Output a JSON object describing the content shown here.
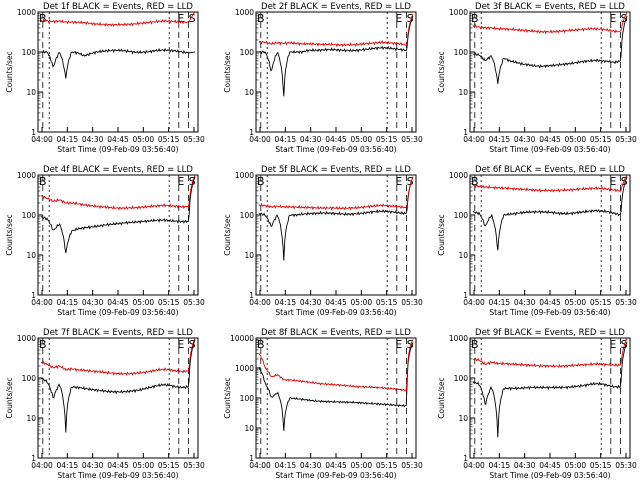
{
  "chart_data": [
    {
      "type": "line",
      "title": "Det 1f BLACK = Events, RED = LLD",
      "xlabel": "Start Time (09-Feb-09 03:56:40)",
      "ylabel": "Counts/sec",
      "y_scale": "log",
      "ylim": [
        1,
        1000
      ],
      "yticks": [
        "1",
        "10",
        "100",
        "1000"
      ],
      "xticks": [
        "04:00",
        "04:15",
        "04:30",
        "04:45",
        "05:00",
        "05:15",
        "05:30"
      ],
      "marker_labels": [
        "B",
        "E",
        "S"
      ],
      "series": [
        {
          "color": "#000000",
          "values": [
            100,
            100,
            40,
            100,
            20,
            100,
            95,
            80,
            90,
            100,
            105,
            108,
            110,
            110,
            105,
            100,
            98,
            100,
            105,
            110,
            112,
            110,
            105,
            100,
            95,
            100
          ]
        },
        {
          "color": "#e00000",
          "values": [
            600,
            600,
            580,
            590,
            560,
            560,
            550,
            540,
            520,
            500,
            490,
            480,
            480,
            485,
            490,
            500,
            520,
            540,
            560,
            580,
            600,
            590,
            570,
            560,
            550,
            1000
          ]
        }
      ]
    },
    {
      "type": "line",
      "title": "Det 2f BLACK = Events, RED = LLD",
      "xlabel": "Start Time (09-Feb-09 03:56:40)",
      "ylabel": "Counts/sec",
      "y_scale": "log",
      "ylim": [
        1,
        1000
      ],
      "yticks": [
        "1",
        "10",
        "100",
        "1000"
      ],
      "xticks": [
        "04:00",
        "04:15",
        "04:30",
        "04:45",
        "05:00",
        "05:15",
        "05:30"
      ],
      "marker_labels": [
        "B",
        "E",
        "S"
      ],
      "series": [
        {
          "color": "#000000",
          "values": [
            100,
            100,
            30,
            100,
            5,
            100,
            100,
            100,
            110,
            110,
            112,
            115,
            115,
            112,
            110,
            108,
            110,
            115,
            120,
            125,
            128,
            125,
            120,
            115,
            110,
            800
          ]
        },
        {
          "color": "#e00000",
          "values": [
            180,
            175,
            160,
            170,
            165,
            170,
            165,
            160,
            160,
            158,
            155,
            155,
            155,
            150,
            150,
            152,
            155,
            160,
            165,
            170,
            175,
            170,
            165,
            160,
            150,
            900
          ]
        }
      ]
    },
    {
      "type": "line",
      "title": "Det 3f BLACK = Events, RED = LLD",
      "xlabel": "Start Time (09-Feb-09 03:56:40)",
      "ylabel": "Counts/sec",
      "y_scale": "log",
      "ylim": [
        1,
        1000
      ],
      "yticks": [
        "1",
        "10",
        "100",
        "1000"
      ],
      "xticks": [
        "04:00",
        "04:15",
        "04:30",
        "04:45",
        "05:00",
        "05:15",
        "05:30"
      ],
      "marker_labels": [
        "B",
        "E",
        "S"
      ],
      "series": [
        {
          "color": "#000000",
          "values": [
            90,
            85,
            60,
            80,
            15,
            70,
            60,
            55,
            50,
            48,
            45,
            44,
            45,
            46,
            48,
            50,
            52,
            55,
            58,
            60,
            62,
            60,
            58,
            55,
            60,
            800
          ]
        },
        {
          "color": "#e00000",
          "values": [
            450,
            420,
            400,
            400,
            380,
            380,
            370,
            360,
            350,
            340,
            330,
            320,
            320,
            320,
            330,
            340,
            350,
            360,
            370,
            380,
            380,
            370,
            350,
            330,
            320,
            1000
          ]
        }
      ]
    },
    {
      "type": "line",
      "title": "Det 4f BLACK = Events, RED = LLD",
      "xlabel": "Start Time (09-Feb-09 03:56:40)",
      "ylabel": "Counts/sec",
      "y_scale": "log",
      "ylim": [
        1,
        1000
      ],
      "yticks": [
        "1",
        "10",
        "100",
        "1000"
      ],
      "xticks": [
        "04:00",
        "04:15",
        "04:30",
        "04:45",
        "05:00",
        "05:15",
        "05:30"
      ],
      "marker_labels": [
        "B",
        "E",
        "S"
      ],
      "series": [
        {
          "color": "#000000",
          "values": [
            90,
            80,
            40,
            60,
            10,
            40,
            45,
            48,
            50,
            52,
            55,
            58,
            60,
            62,
            65,
            66,
            68,
            70,
            72,
            74,
            75,
            72,
            70,
            68,
            70,
            900
          ]
        },
        {
          "color": "#e00000",
          "values": [
            300,
            260,
            220,
            240,
            200,
            200,
            190,
            180,
            170,
            165,
            160,
            155,
            150,
            148,
            150,
            152,
            155,
            160,
            165,
            170,
            175,
            170,
            165,
            160,
            165,
            1000
          ]
        }
      ]
    },
    {
      "type": "line",
      "title": "Det 5f BLACK = Events, RED = LLD",
      "xlabel": "Start Time (09-Feb-09 03:56:40)",
      "ylabel": "Counts/sec",
      "y_scale": "log",
      "ylim": [
        1,
        1000
      ],
      "yticks": [
        "1",
        "10",
        "100",
        "1000"
      ],
      "xticks": [
        "04:00",
        "04:15",
        "04:30",
        "04:45",
        "05:00",
        "05:15",
        "05:30"
      ],
      "marker_labels": [
        "B",
        "E",
        "S"
      ],
      "series": [
        {
          "color": "#000000",
          "values": [
            110,
            100,
            50,
            100,
            5,
            100,
            100,
            105,
            108,
            110,
            112,
            112,
            110,
            108,
            105,
            105,
            108,
            112,
            118,
            122,
            125,
            122,
            118,
            112,
            110,
            900
          ]
        },
        {
          "color": "#e00000",
          "values": [
            180,
            170,
            160,
            165,
            160,
            160,
            158,
            155,
            155,
            152,
            150,
            150,
            150,
            148,
            148,
            150,
            152,
            158,
            165,
            170,
            175,
            170,
            165,
            160,
            150,
            900
          ]
        }
      ]
    },
    {
      "type": "line",
      "title": "Det 6f BLACK = Events, RED = LLD",
      "xlabel": "Start Time (09-Feb-09 03:56:40)",
      "ylabel": "Counts/sec",
      "y_scale": "log",
      "ylim": [
        1,
        1000
      ],
      "yticks": [
        "1",
        "10",
        "100",
        "1000"
      ],
      "xticks": [
        "04:00",
        "04:15",
        "04:30",
        "04:45",
        "05:00",
        "05:15",
        "05:30"
      ],
      "marker_labels": [
        "B",
        "E",
        "S"
      ],
      "series": [
        {
          "color": "#000000",
          "values": [
            120,
            110,
            50,
            100,
            10,
            100,
            105,
            110,
            115,
            118,
            120,
            120,
            118,
            115,
            110,
            108,
            110,
            115,
            120,
            125,
            128,
            125,
            120,
            110,
            100,
            900
          ]
        },
        {
          "color": "#e00000",
          "values": [
            550,
            520,
            500,
            490,
            480,
            470,
            460,
            450,
            440,
            430,
            420,
            410,
            410,
            410,
            415,
            420,
            430,
            440,
            450,
            460,
            470,
            460,
            440,
            420,
            400,
            1000
          ]
        }
      ]
    },
    {
      "type": "line",
      "title": "Det 7f BLACK = Events, RED = LLD",
      "xlabel": "Start Time (09-Feb-09 03:56:40)",
      "ylabel": "Counts/sec",
      "y_scale": "log",
      "ylim": [
        1,
        1000
      ],
      "yticks": [
        "1",
        "10",
        "100",
        "1000"
      ],
      "xticks": [
        "04:00",
        "04:15",
        "04:30",
        "04:45",
        "05:00",
        "05:15",
        "05:30"
      ],
      "marker_labels": [
        "B",
        "E",
        "S"
      ],
      "series": [
        {
          "color": "#000000",
          "values": [
            100,
            80,
            30,
            70,
            3,
            60,
            58,
            55,
            52,
            50,
            48,
            46,
            45,
            45,
            46,
            48,
            50,
            55,
            60,
            65,
            68,
            65,
            60,
            58,
            60,
            900
          ]
        },
        {
          "color": "#e00000",
          "values": [
            250,
            220,
            180,
            200,
            160,
            170,
            160,
            155,
            150,
            145,
            140,
            135,
            130,
            128,
            128,
            130,
            135,
            140,
            150,
            160,
            165,
            160,
            150,
            145,
            150,
            1000
          ]
        }
      ]
    },
    {
      "type": "line",
      "title": "Det 8f BLACK = Events, RED = LLD",
      "xlabel": "Start Time (09-Feb-09 03:56:40)",
      "ylabel": "Counts/sec",
      "y_scale": "log",
      "ylim": [
        1,
        10000
      ],
      "yticks": [
        "1",
        "10",
        "100",
        "1000",
        "10000"
      ],
      "xticks": [
        "04:00",
        "04:15",
        "04:30",
        "04:45",
        "05:00",
        "05:15",
        "05:30"
      ],
      "marker_labels": [
        "B",
        "E",
        "S"
      ],
      "series": [
        {
          "color": "#000000",
          "values": [
            1000,
            300,
            100,
            150,
            5,
            100,
            95,
            90,
            85,
            80,
            78,
            76,
            75,
            74,
            73,
            72,
            70,
            68,
            66,
            64,
            62,
            60,
            58,
            56,
            55,
            7000
          ]
        },
        {
          "color": "#e00000",
          "values": [
            3000,
            1000,
            500,
            600,
            400,
            400,
            380,
            360,
            340,
            320,
            300,
            290,
            280,
            270,
            260,
            250,
            240,
            235,
            230,
            225,
            220,
            210,
            200,
            190,
            180,
            9000
          ]
        }
      ]
    },
    {
      "type": "line",
      "title": "Det 9f BLACK = Events, RED = LLD",
      "xlabel": "Start Time (09-Feb-09 03:56:40)",
      "ylabel": "Counts/sec",
      "y_scale": "log",
      "ylim": [
        1,
        1000
      ],
      "yticks": [
        "1",
        "10",
        "100",
        "1000"
      ],
      "xticks": [
        "04:00",
        "04:15",
        "04:30",
        "04:45",
        "05:00",
        "05:15",
        "05:30"
      ],
      "marker_labels": [
        "B",
        "E",
        "S"
      ],
      "series": [
        {
          "color": "#000000",
          "values": [
            80,
            70,
            20,
            60,
            2,
            55,
            55,
            55,
            56,
            58,
            58,
            58,
            58,
            58,
            58,
            58,
            60,
            62,
            65,
            70,
            72,
            70,
            65,
            60,
            60,
            800
          ]
        },
        {
          "color": "#e00000",
          "values": [
            300,
            280,
            220,
            250,
            230,
            230,
            225,
            220,
            215,
            210,
            205,
            200,
            200,
            198,
            198,
            200,
            205,
            210,
            215,
            220,
            225,
            220,
            215,
            210,
            210,
            1000
          ]
        }
      ]
    }
  ]
}
